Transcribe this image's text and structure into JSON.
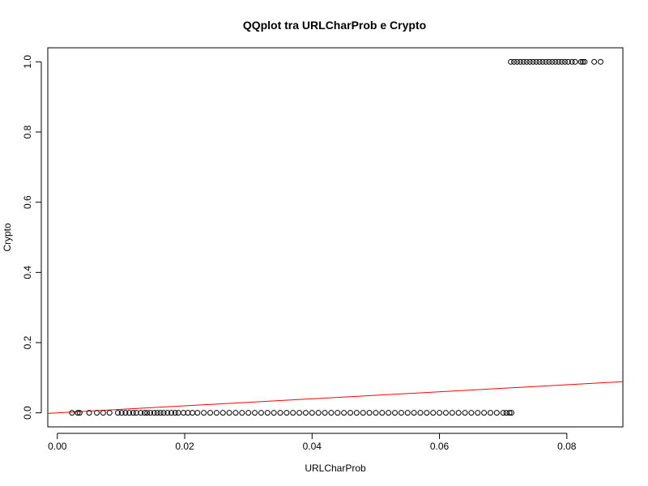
{
  "chart_data": {
    "type": "scatter",
    "title": "QQplot tra URLCharProb e Crypto",
    "xlabel": "URLCharProb",
    "ylabel": "Crypto",
    "xlim": [
      -0.0015,
      0.0888
    ],
    "ylim": [
      -0.04,
      1.04
    ],
    "x_ticks": [
      0.0,
      0.02,
      0.04,
      0.06,
      0.08
    ],
    "x_tick_labels": [
      "0.00",
      "0.02",
      "0.04",
      "0.06",
      "0.08"
    ],
    "y_ticks": [
      0.0,
      0.2,
      0.4,
      0.6,
      0.8,
      1.0
    ],
    "y_tick_labels": [
      "0.0",
      "0.2",
      "0.4",
      "0.6",
      "0.8",
      "1.0"
    ],
    "grid": false,
    "series": [
      {
        "marker": "open-circle",
        "color": "#000000",
        "x": [
          0.0023,
          0.0032,
          0.0035,
          0.005,
          0.0062,
          0.0072,
          0.0082,
          0.0095,
          0.0101,
          0.0107,
          0.0113,
          0.0119,
          0.0124,
          0.0131,
          0.0137,
          0.0141,
          0.0146,
          0.0152,
          0.0157,
          0.0162,
          0.0167,
          0.0173,
          0.0179,
          0.0185,
          0.019,
          0.0198,
          0.0205,
          0.0212,
          0.022,
          0.023,
          0.024,
          0.025,
          0.026,
          0.027,
          0.028,
          0.029,
          0.03,
          0.031,
          0.032,
          0.033,
          0.034,
          0.035,
          0.036,
          0.037,
          0.038,
          0.039,
          0.04,
          0.041,
          0.042,
          0.043,
          0.044,
          0.045,
          0.046,
          0.047,
          0.048,
          0.049,
          0.05,
          0.051,
          0.052,
          0.053,
          0.054,
          0.055,
          0.056,
          0.057,
          0.058,
          0.059,
          0.06,
          0.061,
          0.062,
          0.063,
          0.064,
          0.065,
          0.066,
          0.067,
          0.068,
          0.069,
          0.07,
          0.0705,
          0.071,
          0.0713
        ],
        "y": [
          0,
          0,
          0,
          0,
          0,
          0,
          0,
          0,
          0,
          0,
          0,
          0,
          0,
          0,
          0,
          0,
          0,
          0,
          0,
          0,
          0,
          0,
          0,
          0,
          0,
          0,
          0,
          0,
          0,
          0,
          0,
          0,
          0,
          0,
          0,
          0,
          0,
          0,
          0,
          0,
          0,
          0,
          0,
          0,
          0,
          0,
          0,
          0,
          0,
          0,
          0,
          0,
          0,
          0,
          0,
          0,
          0,
          0,
          0,
          0,
          0,
          0,
          0,
          0,
          0,
          0,
          0,
          0,
          0,
          0,
          0,
          0,
          0,
          0,
          0,
          0,
          0,
          0,
          0,
          0
        ]
      },
      {
        "marker": "open-circle",
        "color": "#000000",
        "x": [
          0.0712,
          0.0717,
          0.0722,
          0.0727,
          0.0732,
          0.0737,
          0.0742,
          0.0747,
          0.0752,
          0.0757,
          0.0762,
          0.0767,
          0.0772,
          0.0777,
          0.0782,
          0.0787,
          0.0792,
          0.0797,
          0.0802,
          0.0808,
          0.0813,
          0.0822,
          0.0825,
          0.0828,
          0.0843,
          0.0853
        ],
        "y": [
          1,
          1,
          1,
          1,
          1,
          1,
          1,
          1,
          1,
          1,
          1,
          1,
          1,
          1,
          1,
          1,
          1,
          1,
          1,
          1,
          1,
          1,
          1,
          1,
          1,
          1
        ]
      }
    ],
    "reference_line": {
      "intercept": 0,
      "slope": 1,
      "color": "#ff0000"
    }
  }
}
